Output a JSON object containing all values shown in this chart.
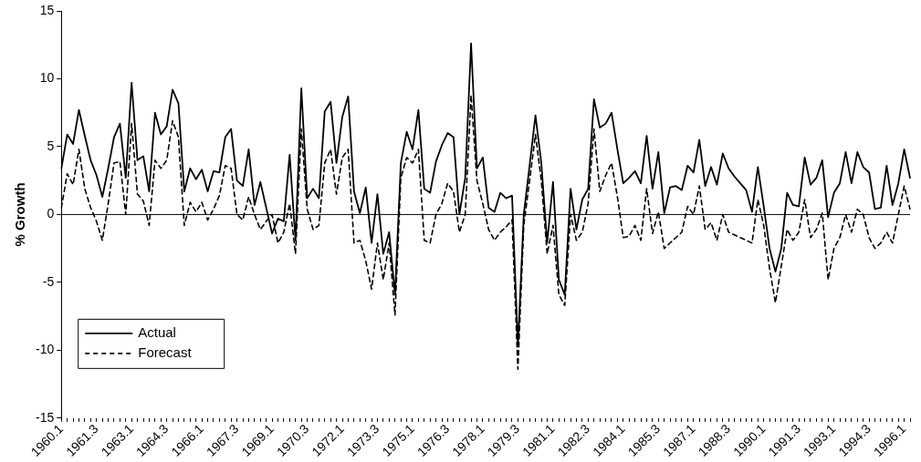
{
  "chart_data": {
    "type": "line",
    "ylabel": "% Growth",
    "categories": [
      "1960.1",
      null,
      null,
      null,
      null,
      null,
      "1961.3",
      null,
      null,
      null,
      null,
      null,
      "1963.1",
      null,
      null,
      null,
      null,
      null,
      "1964.3",
      null,
      null,
      null,
      null,
      null,
      "1966.1",
      null,
      null,
      null,
      null,
      null,
      "1967.3",
      null,
      null,
      null,
      null,
      null,
      "1969.1",
      null,
      null,
      null,
      null,
      null,
      "1970.3",
      null,
      null,
      null,
      null,
      null,
      "1972.1",
      null,
      null,
      null,
      null,
      null,
      "1973.3",
      null,
      null,
      null,
      null,
      null,
      "1975.1",
      null,
      null,
      null,
      null,
      null,
      "1976.3",
      null,
      null,
      null,
      null,
      null,
      "1978.1",
      null,
      null,
      null,
      null,
      null,
      "1979.3",
      null,
      null,
      null,
      null,
      null,
      "1981.1",
      null,
      null,
      null,
      null,
      null,
      "1982.3",
      null,
      null,
      null,
      null,
      null,
      "1984.1",
      null,
      null,
      null,
      null,
      null,
      "1985.3",
      null,
      null,
      null,
      null,
      null,
      "1987.1",
      null,
      null,
      null,
      null,
      null,
      "1988.3",
      null,
      null,
      null,
      null,
      null,
      "1990.1",
      null,
      null,
      null,
      null,
      null,
      "1991.3",
      null,
      null,
      null,
      null,
      null,
      "1993.1",
      null,
      null,
      null,
      null,
      null,
      "1994.3",
      null,
      null,
      null,
      null,
      null,
      "1996.1",
      null
    ],
    "series": [
      {
        "name": "Actual",
        "color": "#000000",
        "line_style": "solid",
        "values": [
          3.4,
          5.9,
          5.2,
          7.7,
          5.8,
          4.0,
          2.9,
          1.3,
          3.4,
          5.7,
          6.7,
          2.7,
          9.7,
          4.0,
          4.3,
          1.7,
          7.5,
          5.9,
          6.5,
          9.2,
          8.2,
          1.7,
          3.4,
          2.6,
          3.3,
          1.7,
          3.2,
          3.1,
          5.7,
          6.3,
          2.5,
          2.1,
          4.8,
          0.7,
          2.4,
          0.5,
          -1.4,
          -0.3,
          -0.5,
          4.4,
          -1.9,
          9.3,
          1.2,
          1.9,
          1.2,
          7.6,
          8.3,
          3.8,
          7.2,
          8.7,
          1.7,
          0.1,
          2.0,
          -2.1,
          1.5,
          -2.9,
          -1.3,
          -5.9,
          3.8,
          6.1,
          4.8,
          7.7,
          1.9,
          1.6,
          3.9,
          5.1,
          6.0,
          5.7,
          0,
          2.7,
          12.6,
          3.4,
          4.2,
          0.5,
          0.2,
          1.6,
          1.2,
          1.4,
          -9.7,
          0,
          3.6,
          7.3,
          3.8,
          -2.1,
          2.4,
          -4.8,
          -5.9,
          1.9,
          -1.1,
          1.1,
          1.9,
          8.5,
          6.4,
          6.7,
          7.5,
          4.8,
          2.3,
          2.7,
          3.2,
          2.3,
          5.8,
          1.9,
          4.6,
          0.1,
          2.0,
          2.1,
          1.8,
          3.6,
          3.1,
          5.5,
          2.1,
          3.5,
          2.2,
          4.5,
          3.4,
          2.8,
          2.3,
          1.8,
          0.2,
          3.5,
          0.6,
          -2.5,
          -4.2,
          -2.5,
          1.6,
          0.7,
          0.6,
          4.2,
          2.2,
          2.7,
          4.0,
          -0.2,
          1.6,
          2.3,
          4.6,
          2.3,
          4.6,
          3.5,
          3.1,
          0.4,
          0.5,
          3.6,
          0.7,
          2.3,
          4.8,
          2.7
        ]
      },
      {
        "name": "Forecast",
        "color": "#000000",
        "line_style": "dashed",
        "values": [
          0.5,
          3.0,
          2.2,
          4.8,
          1.9,
          0.5,
          -0.5,
          -1.9,
          0.8,
          3.8,
          3.9,
          0,
          6.7,
          1.5,
          1.0,
          -0.8,
          4.0,
          3.4,
          4.0,
          6.9,
          5.7,
          -0.8,
          0.9,
          0.2,
          0.9,
          -0.4,
          0.4,
          1.4,
          3.6,
          3.4,
          0,
          -0.4,
          1.3,
          0,
          -1.1,
          -0.5,
          0,
          -2.1,
          -1.3,
          0.8,
          -2.9,
          6.3,
          0.4,
          -1.1,
          -0.8,
          3.8,
          4.8,
          1.5,
          4.2,
          4.8,
          -2.1,
          -1.9,
          -3.4,
          -5.5,
          -2.1,
          -4.8,
          -2.1,
          -7.4,
          2.7,
          4.2,
          3.8,
          4.8,
          -1.9,
          -2.1,
          0,
          0.8,
          2.3,
          1.7,
          -1.3,
          0,
          8.8,
          2.5,
          0.8,
          -1.1,
          -1.9,
          -1.3,
          -0.9,
          -0.4,
          -11.4,
          -0.8,
          2.5,
          5.9,
          2.5,
          -2.9,
          -0.8,
          -5.9,
          -6.7,
          0,
          -1.9,
          -1.3,
          0.8,
          6.3,
          1.7,
          2.9,
          3.8,
          1.3,
          -1.7,
          -1.6,
          -0.8,
          -1.9,
          1.9,
          -1.4,
          0.2,
          -2.5,
          -2.1,
          -1.7,
          -1.3,
          0.6,
          0,
          2.1,
          -1.1,
          -0.6,
          -1.9,
          0,
          -1.3,
          -1.5,
          -1.7,
          -1.9,
          -2.1,
          1.1,
          -0.8,
          -4.0,
          -6.5,
          -3.8,
          -1.1,
          -1.9,
          -1.3,
          1.1,
          -1.7,
          -1.1,
          0.1,
          -4.8,
          -2.5,
          -1.7,
          0,
          -1.3,
          0.4,
          0,
          -1.7,
          -2.5,
          -2.1,
          -1.3,
          -2.1,
          0,
          2.1,
          0.4
        ]
      }
    ],
    "ylim": [
      -15,
      15
    ],
    "yticks": [
      -15,
      -10,
      -5,
      0,
      5,
      10,
      15
    ],
    "grid": false,
    "ref_lines": [
      {
        "axis": "y",
        "value": 0,
        "color": "#000000"
      }
    ],
    "legend": "bottom left",
    "marker": "none"
  }
}
